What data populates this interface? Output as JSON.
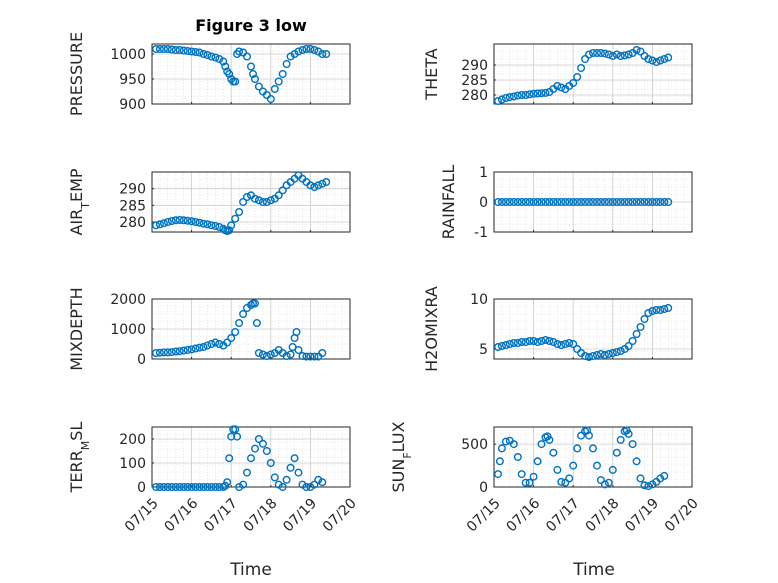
{
  "figure": {
    "title": "Figure 3 low",
    "marker_color": "#0072BD"
  },
  "chart_data": [
    {
      "type": "scatter",
      "id": "pressure",
      "ylabel": "PRESSURE",
      "ylim": [
        900,
        1020
      ],
      "yticks": [
        900,
        950,
        1000
      ],
      "xlim": [
        0,
        5
      ],
      "xticks": [
        "07/15",
        "07/16",
        "07/17",
        "07/18",
        "07/19",
        "07/20"
      ],
      "grid": true,
      "x": [
        0.1,
        0.2,
        0.3,
        0.4,
        0.5,
        0.6,
        0.7,
        0.8,
        0.9,
        1.0,
        1.1,
        1.2,
        1.3,
        1.4,
        1.5,
        1.6,
        1.7,
        1.8,
        1.85,
        1.9,
        1.95,
        2.0,
        2.05,
        2.1,
        2.15,
        2.2,
        2.3,
        2.4,
        2.5,
        2.55,
        2.6,
        2.7,
        2.8,
        2.9,
        3.0,
        3.1,
        3.2,
        3.3,
        3.4,
        3.5,
        3.6,
        3.7,
        3.8,
        3.9,
        4.0,
        4.1,
        4.2,
        4.3,
        4.4
      ],
      "y": [
        1010,
        1010,
        1010,
        1010,
        1009,
        1008,
        1008,
        1007,
        1006,
        1005,
        1004,
        1003,
        1000,
        998,
        995,
        993,
        990,
        985,
        975,
        965,
        960,
        950,
        945,
        945,
        1000,
        1005,
        1003,
        995,
        975,
        960,
        950,
        935,
        925,
        918,
        910,
        930,
        945,
        960,
        980,
        995,
        1000,
        1005,
        1008,
        1010,
        1010,
        1008,
        1005,
        1000,
        1000
      ]
    },
    {
      "type": "scatter",
      "id": "theta",
      "ylabel": "THETA",
      "ylim": [
        277,
        297
      ],
      "yticks": [
        280,
        285,
        290
      ],
      "xlim": [
        0,
        5
      ],
      "xticks": [
        "07/15",
        "07/16",
        "07/17",
        "07/18",
        "07/19",
        "07/20"
      ],
      "grid": true,
      "x": [
        0.1,
        0.2,
        0.3,
        0.4,
        0.5,
        0.6,
        0.7,
        0.8,
        0.9,
        1.0,
        1.1,
        1.2,
        1.3,
        1.4,
        1.5,
        1.6,
        1.7,
        1.8,
        1.9,
        2.0,
        2.1,
        2.2,
        2.3,
        2.4,
        2.5,
        2.6,
        2.7,
        2.8,
        2.9,
        3.0,
        3.1,
        3.2,
        3.3,
        3.4,
        3.5,
        3.6,
        3.7,
        3.8,
        3.9,
        4.0,
        4.1,
        4.2,
        4.3,
        4.4
      ],
      "y": [
        278,
        278.5,
        279,
        279.3,
        279.5,
        279.8,
        280,
        280,
        280.2,
        280.4,
        280.5,
        280.6,
        280.7,
        281,
        282,
        283,
        282.5,
        282,
        283,
        284,
        286,
        289,
        292,
        293.5,
        294,
        294,
        294,
        293.8,
        293.5,
        293,
        293.5,
        293,
        293.2,
        293.5,
        294,
        295,
        294.5,
        293,
        292,
        291.5,
        291,
        291.5,
        292,
        292.5
      ]
    },
    {
      "type": "scatter",
      "id": "air_temp",
      "ylabel": "AIR_TEMP",
      "ylabel_main": "AIR",
      "ylabel_sub": "T",
      "ylabel_tail": "EMP",
      "ylim": [
        277,
        295
      ],
      "yticks": [
        280,
        285,
        290
      ],
      "xlim": [
        0,
        5
      ],
      "xticks": [
        "07/15",
        "07/16",
        "07/17",
        "07/18",
        "07/19",
        "07/20"
      ],
      "grid": true,
      "x": [
        0.1,
        0.2,
        0.3,
        0.4,
        0.5,
        0.6,
        0.7,
        0.8,
        0.9,
        1.0,
        1.1,
        1.2,
        1.3,
        1.4,
        1.5,
        1.6,
        1.7,
        1.8,
        1.85,
        1.9,
        1.95,
        2.0,
        2.1,
        2.2,
        2.3,
        2.4,
        2.5,
        2.6,
        2.7,
        2.8,
        2.9,
        3.0,
        3.1,
        3.2,
        3.3,
        3.4,
        3.5,
        3.6,
        3.7,
        3.8,
        3.9,
        4.0,
        4.1,
        4.2,
        4.3,
        4.4
      ],
      "y": [
        279,
        279.3,
        279.6,
        280,
        280.3,
        280.5,
        280.6,
        280.5,
        280.4,
        280.2,
        280,
        279.8,
        279.5,
        279.3,
        279,
        278.8,
        278.5,
        278,
        277.5,
        277.3,
        277.5,
        279,
        281,
        283,
        286,
        287.5,
        288,
        287,
        286.5,
        286,
        286,
        286.5,
        287,
        288,
        289.5,
        291,
        292,
        293,
        294,
        293,
        292,
        291,
        290.5,
        291,
        291.5,
        292
      ]
    },
    {
      "type": "scatter",
      "id": "rainfall",
      "ylabel": "RAINFALL",
      "ylim": [
        -1,
        1
      ],
      "yticks": [
        -1,
        0,
        1
      ],
      "xlim": [
        0,
        5
      ],
      "xticks": [
        "07/15",
        "07/16",
        "07/17",
        "07/18",
        "07/19",
        "07/20"
      ],
      "grid": true,
      "x": [
        0.1,
        0.2,
        0.3,
        0.4,
        0.5,
        0.6,
        0.7,
        0.8,
        0.9,
        1.0,
        1.1,
        1.2,
        1.3,
        1.4,
        1.5,
        1.6,
        1.7,
        1.8,
        1.9,
        2.0,
        2.1,
        2.2,
        2.3,
        2.4,
        2.5,
        2.6,
        2.7,
        2.8,
        2.9,
        3.0,
        3.1,
        3.2,
        3.3,
        3.4,
        3.5,
        3.6,
        3.7,
        3.8,
        3.9,
        4.0,
        4.1,
        4.2,
        4.3,
        4.4
      ],
      "y": [
        0,
        0,
        0,
        0,
        0,
        0,
        0,
        0,
        0,
        0,
        0,
        0,
        0,
        0,
        0,
        0,
        0,
        0,
        0,
        0,
        0,
        0,
        0,
        0,
        0,
        0,
        0,
        0,
        0,
        0,
        0,
        0,
        0,
        0,
        0,
        0,
        0,
        0,
        0,
        0,
        0,
        0,
        0,
        0
      ]
    },
    {
      "type": "scatter",
      "id": "mixdepth",
      "ylabel": "MIXDEPTH",
      "ylim": [
        0,
        2000
      ],
      "yticks": [
        0,
        1000,
        2000
      ],
      "xlim": [
        0,
        5
      ],
      "xticks": [
        "07/15",
        "07/16",
        "07/17",
        "07/18",
        "07/19",
        "07/20"
      ],
      "grid": true,
      "x": [
        0.1,
        0.2,
        0.3,
        0.4,
        0.5,
        0.6,
        0.7,
        0.8,
        0.9,
        1.0,
        1.1,
        1.2,
        1.3,
        1.4,
        1.5,
        1.6,
        1.7,
        1.8,
        1.9,
        2.0,
        2.1,
        2.2,
        2.3,
        2.4,
        2.5,
        2.55,
        2.6,
        2.65,
        2.7,
        2.8,
        2.9,
        3.0,
        3.1,
        3.2,
        3.3,
        3.4,
        3.5,
        3.55,
        3.6,
        3.65,
        3.7,
        3.8,
        3.9,
        4.0,
        4.1,
        4.2,
        4.3
      ],
      "y": [
        200,
        210,
        220,
        220,
        230,
        250,
        260,
        280,
        300,
        320,
        350,
        380,
        400,
        450,
        500,
        550,
        500,
        450,
        550,
        700,
        900,
        1200,
        1500,
        1700,
        1800,
        1850,
        1850,
        1200,
        200,
        150,
        100,
        150,
        200,
        300,
        200,
        100,
        150,
        400,
        700,
        900,
        300,
        100,
        80,
        80,
        80,
        80,
        200
      ]
    },
    {
      "type": "scatter",
      "id": "h2omixra",
      "ylabel": "H2OMIXRA",
      "ylim": [
        4,
        10
      ],
      "yticks": [
        5,
        10
      ],
      "xlim": [
        0,
        5
      ],
      "xticks": [
        "07/15",
        "07/16",
        "07/17",
        "07/18",
        "07/19",
        "07/20"
      ],
      "grid": true,
      "x": [
        0.1,
        0.2,
        0.3,
        0.4,
        0.5,
        0.6,
        0.7,
        0.8,
        0.9,
        1.0,
        1.1,
        1.2,
        1.3,
        1.4,
        1.5,
        1.6,
        1.7,
        1.8,
        1.9,
        2.0,
        2.1,
        2.2,
        2.3,
        2.4,
        2.5,
        2.6,
        2.7,
        2.8,
        2.9,
        3.0,
        3.1,
        3.2,
        3.3,
        3.4,
        3.5,
        3.6,
        3.7,
        3.8,
        3.9,
        4.0,
        4.1,
        4.2,
        4.3,
        4.4
      ],
      "y": [
        5.2,
        5.3,
        5.4,
        5.5,
        5.6,
        5.6,
        5.7,
        5.7,
        5.8,
        5.8,
        5.7,
        5.8,
        5.9,
        5.8,
        5.7,
        5.5,
        5.4,
        5.5,
        5.6,
        5.5,
        5.0,
        4.6,
        4.3,
        4.2,
        4.3,
        4.4,
        4.5,
        4.4,
        4.5,
        4.6,
        4.7,
        4.8,
        5.0,
        5.3,
        5.8,
        6.5,
        7.2,
        8.0,
        8.6,
        8.8,
        8.9,
        8.9,
        9.0,
        9.1
      ]
    },
    {
      "type": "scatter",
      "id": "terr_msl",
      "ylabel": "TERR_MSL",
      "ylabel_main": "TERR",
      "ylabel_sub": "M",
      "ylabel_tail": "SL",
      "ylim": [
        0,
        250
      ],
      "yticks": [
        0,
        100,
        200
      ],
      "xlim": [
        0,
        5
      ],
      "xticks": [
        "07/15",
        "07/16",
        "07/17",
        "07/18",
        "07/19",
        "07/20"
      ],
      "grid": true,
      "x": [
        0.1,
        0.2,
        0.3,
        0.4,
        0.5,
        0.6,
        0.7,
        0.8,
        0.9,
        1.0,
        1.1,
        1.2,
        1.3,
        1.4,
        1.5,
        1.6,
        1.7,
        1.8,
        1.85,
        1.9,
        1.95,
        2.0,
        2.05,
        2.1,
        2.15,
        2.2,
        2.3,
        2.4,
        2.5,
        2.6,
        2.7,
        2.8,
        2.9,
        3.0,
        3.1,
        3.2,
        3.3,
        3.4,
        3.5,
        3.6,
        3.7,
        3.8,
        3.9,
        4.0,
        4.1,
        4.2,
        4.3
      ],
      "y": [
        0,
        0,
        0,
        0,
        0,
        0,
        0,
        0,
        0,
        0,
        0,
        0,
        0,
        0,
        0,
        0,
        0,
        0,
        5,
        20,
        120,
        210,
        240,
        240,
        210,
        0,
        10,
        60,
        120,
        160,
        200,
        180,
        150,
        100,
        40,
        10,
        0,
        30,
        80,
        120,
        60,
        10,
        0,
        0,
        10,
        30,
        20
      ]
    },
    {
      "type": "scatter",
      "id": "sun_flux",
      "ylabel": "SUN_FLUX",
      "ylabel_main": "SUN",
      "ylabel_sub": "F",
      "ylabel_tail": "LUX",
      "ylim": [
        0,
        700
      ],
      "yticks": [
        0,
        500
      ],
      "xlim": [
        0,
        5
      ],
      "xticks": [
        "07/15",
        "07/16",
        "07/17",
        "07/18",
        "07/19",
        "07/20"
      ],
      "grid": true,
      "x": [
        0.1,
        0.15,
        0.2,
        0.3,
        0.4,
        0.5,
        0.6,
        0.7,
        0.8,
        0.9,
        1.0,
        1.1,
        1.2,
        1.3,
        1.35,
        1.4,
        1.5,
        1.6,
        1.7,
        1.8,
        1.9,
        2.0,
        2.1,
        2.2,
        2.3,
        2.35,
        2.4,
        2.5,
        2.6,
        2.7,
        2.8,
        2.9,
        3.0,
        3.1,
        3.2,
        3.3,
        3.35,
        3.4,
        3.5,
        3.6,
        3.7,
        3.8,
        3.9,
        4.0,
        4.1,
        4.2,
        4.3
      ],
      "y": [
        150,
        300,
        450,
        530,
        540,
        500,
        350,
        150,
        50,
        50,
        120,
        300,
        500,
        580,
        590,
        550,
        400,
        200,
        60,
        50,
        100,
        250,
        450,
        600,
        650,
        660,
        600,
        450,
        250,
        80,
        30,
        50,
        200,
        400,
        550,
        650,
        660,
        620,
        500,
        300,
        100,
        20,
        10,
        30,
        60,
        100,
        130
      ]
    }
  ],
  "xlabel": "Time"
}
